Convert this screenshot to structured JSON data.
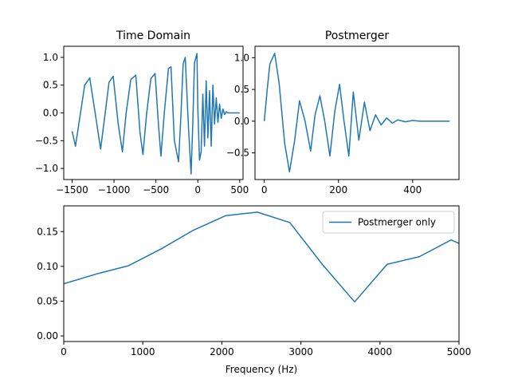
{
  "colors": {
    "series": "#1f77b4",
    "axes": "#000000",
    "background": "#ffffff",
    "legend_border": "#cccccc"
  },
  "chart_data": [
    {
      "id": "time-domain",
      "type": "line",
      "title": "Time Domain",
      "xlabel": "",
      "ylabel": "",
      "xlim": [
        -1600,
        540
      ],
      "ylim": [
        -1.2,
        1.2
      ],
      "xticks": [
        -1500,
        -1000,
        -500,
        0,
        500
      ],
      "xtick_labels": [
        "−1500",
        "−1000",
        "−500",
        "0",
        "500"
      ],
      "yticks": [
        -1.0,
        -0.5,
        0.0,
        0.5,
        1.0
      ],
      "ytick_labels": [
        "−1.0",
        "−0.5",
        "0.0",
        "0.5",
        "1.0"
      ],
      "grid": false,
      "series": [
        {
          "x": [
            -1500,
            -1460,
            -1400,
            -1350,
            -1290,
            -1220,
            -1160,
            -1105,
            -1060,
            -1010,
            -950,
            -900,
            -855,
            -800,
            -740,
            -690,
            -655,
            -610,
            -560,
            -510,
            -470,
            -440,
            -400,
            -350,
            -320,
            -280,
            -230,
            -200,
            -175,
            -150,
            -110,
            -80,
            -60,
            -40,
            -10,
            0,
            20,
            40,
            60,
            80,
            100,
            120,
            140,
            160,
            180,
            200,
            220,
            240,
            260,
            280,
            300,
            320,
            340,
            360,
            400,
            500
          ],
          "y": [
            -0.33,
            -0.6,
            0.0,
            0.5,
            0.63,
            -0.05,
            -0.65,
            0.0,
            0.55,
            0.66,
            -0.2,
            -0.7,
            0.0,
            0.6,
            0.68,
            -0.35,
            -0.75,
            0.0,
            0.62,
            0.71,
            -0.2,
            -0.78,
            0.0,
            0.8,
            0.83,
            -0.5,
            -0.88,
            0.0,
            0.88,
            1.0,
            -0.3,
            -1.1,
            -0.2,
            0.9,
            1.07,
            0.1,
            -0.85,
            -0.7,
            0.34,
            -0.6,
            0.58,
            -0.45,
            0.4,
            -0.6,
            0.5,
            -0.2,
            0.27,
            -0.17,
            0.16,
            -0.1,
            0.07,
            -0.03,
            0.02,
            0.0,
            0.0,
            0.0
          ]
        }
      ]
    },
    {
      "id": "postmerger",
      "type": "line",
      "title": "Postmerger",
      "xlabel": "",
      "ylabel": "",
      "xlim": [
        -25,
        525
      ],
      "ylim": [
        -0.92,
        1.18
      ],
      "xticks": [
        0,
        200,
        400
      ],
      "xtick_labels": [
        "0",
        "200",
        "400"
      ],
      "yticks": [
        -0.5,
        0.0,
        0.5,
        1.0
      ],
      "ytick_labels": [
        "−0.5",
        "0.0",
        "0.5",
        "1.0"
      ],
      "grid": false,
      "series": [
        {
          "x": [
            0,
            8,
            15,
            28,
            40,
            55,
            68,
            82,
            95,
            110,
            125,
            137,
            150,
            163,
            177,
            190,
            203,
            215,
            228,
            240,
            255,
            270,
            285,
            300,
            315,
            330,
            345,
            360,
            380,
            400,
            420,
            450,
            500
          ],
          "y": [
            0.0,
            0.5,
            0.9,
            1.07,
            0.6,
            -0.35,
            -0.8,
            -0.3,
            0.32,
            0.0,
            -0.47,
            0.1,
            0.4,
            0.0,
            -0.55,
            0.15,
            0.58,
            0.0,
            -0.55,
            0.46,
            -0.3,
            0.3,
            -0.15,
            0.1,
            -0.06,
            0.05,
            -0.03,
            0.02,
            -0.01,
            0.01,
            0.0,
            0.0,
            0.0
          ]
        }
      ]
    },
    {
      "id": "spectrum",
      "type": "line",
      "title": "",
      "xlabel": "Frequency (Hz)",
      "ylabel": "",
      "xlim": [
        0,
        5000
      ],
      "ylim": [
        -0.008,
        0.187
      ],
      "xticks": [
        0,
        1000,
        2000,
        3000,
        4000,
        5000
      ],
      "xtick_labels": [
        "0",
        "1000",
        "2000",
        "3000",
        "4000",
        "5000"
      ],
      "yticks": [
        0.0,
        0.05,
        0.1,
        0.15
      ],
      "ytick_labels": [
        "0.00",
        "0.05",
        "0.10",
        "0.15"
      ],
      "grid": false,
      "legend": {
        "placement": "top-right",
        "entries": [
          "Postmerger only"
        ]
      },
      "series": [
        {
          "name": "Postmerger only",
          "x": [
            0,
            410,
            820,
            1230,
            1640,
            2050,
            2450,
            2860,
            3270,
            3680,
            4090,
            4500,
            4900,
            5000
          ],
          "y": [
            0.075,
            0.089,
            0.101,
            0.125,
            0.152,
            0.173,
            0.178,
            0.163,
            0.103,
            0.049,
            0.103,
            0.114,
            0.138,
            0.133
          ]
        }
      ]
    }
  ]
}
